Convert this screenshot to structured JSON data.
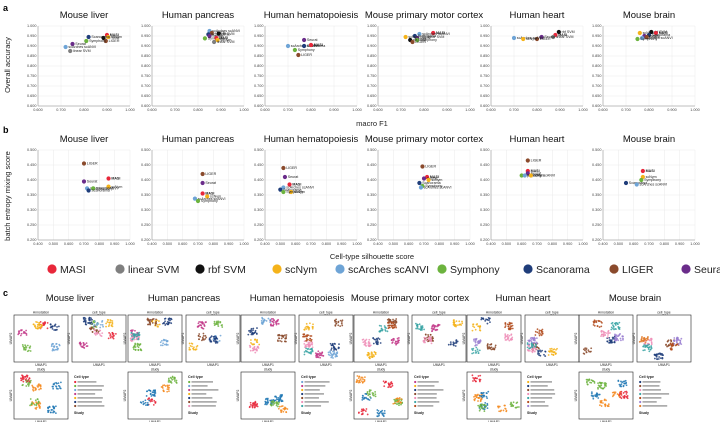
{
  "panel_labels": {
    "a": "a",
    "b": "b",
    "c": "c"
  },
  "dataset_titles": [
    "Mouse liver",
    "Human pancreas",
    "Human hematopoiesis",
    "Mouse primary motor cortex",
    "Human heart",
    "Mouse brain"
  ],
  "colors": {
    "MASI": "#e8273a",
    "linear SVM": "#7f7f7f",
    "rbf SVM": "#111111",
    "scNym": "#f5b31a",
    "scArches scANVI": "#6ea4d6",
    "Symphony": "#6cb33e",
    "Scanorama": "#1f3d7a",
    "LIGER": "#8a4a2c",
    "Seurat": "#6a2c8a"
  },
  "legend": {
    "items": [
      {
        "name": "MASI",
        "color": "#e8273a"
      },
      {
        "name": "linear SVM",
        "color": "#7f7f7f"
      },
      {
        "name": "rbf SVM",
        "color": "#111111"
      },
      {
        "name": "scNym",
        "color": "#f5b31a"
      },
      {
        "name": "scArches scANVI",
        "color": "#6ea4d6"
      },
      {
        "name": "Symphony",
        "color": "#6cb33e"
      },
      {
        "name": "Scanorama",
        "color": "#1f3d7a"
      },
      {
        "name": "LIGER",
        "color": "#8a4a2c"
      },
      {
        "name": "Seurat",
        "color": "#6a2c8a"
      }
    ]
  },
  "chart_data": [
    {
      "id": "a",
      "type": "scatter",
      "ylabel": "Overall accuracy",
      "xlabel": "macro F1",
      "xlim": [
        0.6,
        1.0
      ],
      "ylim": [
        0.6,
        1.0
      ],
      "xticks": [
        "0.600",
        "0.700",
        "0.800",
        "0.900",
        "1.000"
      ],
      "yticks": [
        "0.600",
        "0.650",
        "0.700",
        "0.750",
        "0.800",
        "0.850",
        "0.900",
        "0.950",
        "1.000"
      ],
      "panels": [
        {
          "title": "Mouse liver",
          "points": [
            {
              "method": "MASI",
              "x": 0.9,
              "y": 0.955,
              "label": "MASI"
            },
            {
              "method": "rbf SVM",
              "x": 0.885,
              "y": 0.94,
              "label": "rbf SVM"
            },
            {
              "method": "scNym",
              "x": 0.905,
              "y": 0.945,
              "label": "scNym"
            },
            {
              "method": "LIGER",
              "x": 0.895,
              "y": 0.925,
              "label": "LIGER"
            },
            {
              "method": "Scanorama",
              "x": 0.82,
              "y": 0.945,
              "label": "Scanorama"
            },
            {
              "method": "Symphony",
              "x": 0.81,
              "y": 0.925,
              "label": "Symphony"
            },
            {
              "method": "Seurat",
              "x": 0.75,
              "y": 0.91,
              "label": "Seurat"
            },
            {
              "method": "scArches scANVI",
              "x": 0.72,
              "y": 0.895,
              "label": "scArches scANVI"
            },
            {
              "method": "linear SVM",
              "x": 0.74,
              "y": 0.875,
              "label": "linear SVM"
            }
          ]
        },
        {
          "title": "Human pancreas",
          "points": [
            {
              "method": "scArches scANVI",
              "x": 0.85,
              "y": 0.975,
              "label": "scArches scANVI"
            },
            {
              "method": "LIGER",
              "x": 0.86,
              "y": 0.965,
              "label": "LIGER"
            },
            {
              "method": "Scanorama",
              "x": 0.845,
              "y": 0.958,
              "label": "Scanorama"
            },
            {
              "method": "rbf SVM",
              "x": 0.89,
              "y": 0.962,
              "label": "rbf SVM"
            },
            {
              "method": "Seurat",
              "x": 0.85,
              "y": 0.95,
              "label": "Seurat"
            },
            {
              "method": "Symphony",
              "x": 0.83,
              "y": 0.938,
              "label": "Symphony"
            },
            {
              "method": "MASI",
              "x": 0.88,
              "y": 0.94,
              "label": "MASI"
            },
            {
              "method": "scNym",
              "x": 0.885,
              "y": 0.93,
              "label": "scNym"
            },
            {
              "method": "linear SVM",
              "x": 0.87,
              "y": 0.92,
              "label": "linear SVM"
            }
          ]
        },
        {
          "title": "Human hematopoiesis",
          "points": [
            {
              "method": "Seurat",
              "x": 0.77,
              "y": 0.93,
              "label": "Seurat"
            },
            {
              "method": "scArches scANVI",
              "x": 0.7,
              "y": 0.9,
              "label": "scArches scANVI"
            },
            {
              "method": "Scanorama",
              "x": 0.77,
              "y": 0.9,
              "label": "Scanorama"
            },
            {
              "method": "MASI",
              "x": 0.8,
              "y": 0.905,
              "label": "MASI"
            },
            {
              "method": "Symphony",
              "x": 0.73,
              "y": 0.88,
              "label": "Symphony"
            },
            {
              "method": "LIGER",
              "x": 0.745,
              "y": 0.855,
              "label": "LIGER"
            }
          ]
        },
        {
          "title": "Mouse primary motor cortex",
          "points": [
            {
              "method": "MASI",
              "x": 0.84,
              "y": 0.965,
              "label": "MASI"
            },
            {
              "method": "scArches scANVI",
              "x": 0.78,
              "y": 0.96,
              "label": "scArches scANVI"
            },
            {
              "method": "Scanorama",
              "x": 0.76,
              "y": 0.95,
              "label": "Scanorama"
            },
            {
              "method": "Seurat",
              "x": 0.77,
              "y": 0.94,
              "label": "Seurat"
            },
            {
              "method": "linear SVM",
              "x": 0.8,
              "y": 0.945,
              "label": "linear SVM"
            },
            {
              "method": "Symphony",
              "x": 0.77,
              "y": 0.93,
              "label": "Symphony"
            },
            {
              "method": "scNym",
              "x": 0.72,
              "y": 0.945,
              "label": "scNym"
            },
            {
              "method": "rbf SVM",
              "x": 0.74,
              "y": 0.93,
              "label": "rbf SVM"
            },
            {
              "method": "LIGER",
              "x": 0.75,
              "y": 0.92,
              "label": "LIGER"
            }
          ]
        },
        {
          "title": "Human heart",
          "points": [
            {
              "method": "rbf SVM",
              "x": 0.895,
              "y": 0.97,
              "label": "rbf SVM"
            },
            {
              "method": "MASI",
              "x": 0.88,
              "y": 0.955,
              "label": "MASI"
            },
            {
              "method": "linear SVM",
              "x": 0.87,
              "y": 0.945,
              "label": "linear SVM"
            },
            {
              "method": "Seurat",
              "x": 0.82,
              "y": 0.945,
              "label": "Seurat"
            },
            {
              "method": "LIGER",
              "x": 0.8,
              "y": 0.935,
              "label": "LIGER"
            },
            {
              "method": "scArches scANVI",
              "x": 0.7,
              "y": 0.94,
              "label": "scArches scANVI"
            },
            {
              "method": "scNym",
              "x": 0.74,
              "y": 0.935,
              "label": "scNym"
            }
          ]
        },
        {
          "title": "Mouse brain",
          "points": [
            {
              "method": "scNym",
              "x": 0.76,
              "y": 0.965,
              "label": "scNym"
            },
            {
              "method": "rbf SVM",
              "x": 0.81,
              "y": 0.97,
              "label": "rbf SVM"
            },
            {
              "method": "MASI",
              "x": 0.83,
              "y": 0.965,
              "label": "MASI"
            },
            {
              "method": "Scanorama",
              "x": 0.8,
              "y": 0.955,
              "label": "Scanorama"
            },
            {
              "method": "Seurat",
              "x": 0.78,
              "y": 0.95,
              "label": "Seurat"
            },
            {
              "method": "scArches scANVI",
              "x": 0.77,
              "y": 0.94,
              "label": "scArches scANVI"
            },
            {
              "method": "LIGER",
              "x": 0.79,
              "y": 0.945,
              "label": "LIGER"
            },
            {
              "method": "Symphony",
              "x": 0.75,
              "y": 0.935,
              "label": "Symphony"
            }
          ]
        }
      ]
    },
    {
      "id": "b",
      "type": "scatter",
      "ylabel": "batch entropy mixing score",
      "xlabel": "Cell-type silhouette score",
      "xlim": [
        0.4,
        1.0
      ],
      "ylim": [
        0.2,
        0.5
      ],
      "xticks": [
        "0.400",
        "0.500",
        "0.600",
        "0.700",
        "0.800",
        "0.900",
        "1.000"
      ],
      "yticks": [
        "0.200",
        "0.250",
        "0.300",
        "0.350",
        "0.400",
        "0.450",
        "0.500"
      ],
      "panels": [
        {
          "title": "Mouse liver",
          "points": [
            {
              "method": "LIGER",
              "x": 0.7,
              "y": 0.455,
              "label": "LIGER"
            },
            {
              "method": "MASI",
              "x": 0.86,
              "y": 0.405,
              "label": "MASI"
            },
            {
              "method": "Seurat",
              "x": 0.7,
              "y": 0.395,
              "label": "Seurat"
            },
            {
              "method": "scNym",
              "x": 0.86,
              "y": 0.378,
              "label": "scNym"
            },
            {
              "method": "scArches scANVI",
              "x": 0.72,
              "y": 0.372,
              "label": "scArches scANVI"
            },
            {
              "method": "Symphony",
              "x": 0.76,
              "y": 0.372,
              "label": "Symphony"
            },
            {
              "method": "Scanorama",
              "x": 0.73,
              "y": 0.365,
              "label": "Scanorama"
            }
          ]
        },
        {
          "title": "Human pancreas",
          "points": [
            {
              "method": "LIGER",
              "x": 0.73,
              "y": 0.42,
              "label": "LIGER"
            },
            {
              "method": "Seurat",
              "x": 0.73,
              "y": 0.39,
              "label": "Seurat"
            },
            {
              "method": "MASI",
              "x": 0.73,
              "y": 0.355,
              "label": "MASI"
            },
            {
              "method": "scNym",
              "x": 0.76,
              "y": 0.345,
              "label": "scNym"
            },
            {
              "method": "scArches scANVI",
              "x": 0.68,
              "y": 0.338,
              "label": "scArches scANVI"
            },
            {
              "method": "Symphony",
              "x": 0.7,
              "y": 0.33,
              "label": "Symphony"
            }
          ]
        },
        {
          "title": "Human hematopoiesis",
          "points": [
            {
              "method": "LIGER",
              "x": 0.52,
              "y": 0.44,
              "label": "LIGER"
            },
            {
              "method": "Seurat",
              "x": 0.53,
              "y": 0.41,
              "label": "Seurat"
            },
            {
              "method": "MASI",
              "x": 0.56,
              "y": 0.385,
              "label": "MASI"
            },
            {
              "method": "scArches scANVI",
              "x": 0.52,
              "y": 0.375,
              "label": "scArches scANVI"
            },
            {
              "method": "Scanorama",
              "x": 0.5,
              "y": 0.368,
              "label": "Scanorama"
            },
            {
              "method": "scNym",
              "x": 0.57,
              "y": 0.36,
              "label": "scNym"
            },
            {
              "method": "Symphony",
              "x": 0.52,
              "y": 0.36,
              "label": "Symphony"
            }
          ]
        },
        {
          "title": "Mouse primary motor cortex",
          "points": [
            {
              "method": "LIGER",
              "x": 0.69,
              "y": 0.445,
              "label": "LIGER"
            },
            {
              "method": "MASI",
              "x": 0.72,
              "y": 0.41,
              "label": "MASI"
            },
            {
              "method": "Seurat",
              "x": 0.7,
              "y": 0.405,
              "label": "Seurat"
            },
            {
              "method": "scNym",
              "x": 0.73,
              "y": 0.4,
              "label": "scNym"
            },
            {
              "method": "Scanorama",
              "x": 0.67,
              "y": 0.39,
              "label": "Scanorama"
            },
            {
              "method": "Symphony",
              "x": 0.69,
              "y": 0.38,
              "label": "Symphony"
            },
            {
              "method": "scArches scANVI",
              "x": 0.68,
              "y": 0.375,
              "label": "scArches scANVI"
            }
          ]
        },
        {
          "title": "Human heart",
          "points": [
            {
              "method": "LIGER",
              "x": 0.64,
              "y": 0.465,
              "label": "LIGER"
            },
            {
              "method": "MASI",
              "x": 0.64,
              "y": 0.43,
              "label": "MASI"
            },
            {
              "method": "Seurat",
              "x": 0.64,
              "y": 0.422,
              "label": "Seurat"
            },
            {
              "method": "Symphony",
              "x": 0.6,
              "y": 0.415,
              "label": "Symphony"
            },
            {
              "method": "scArches scANVI",
              "x": 0.62,
              "y": 0.415,
              "label": "scArches scANVI"
            },
            {
              "method": "scNym",
              "x": 0.66,
              "y": 0.415,
              "label": "scNym"
            }
          ]
        },
        {
          "title": "Mouse brain",
          "points": [
            {
              "method": "MASI",
              "x": 0.66,
              "y": 0.43,
              "label": "MASI"
            },
            {
              "method": "scNym",
              "x": 0.66,
              "y": 0.41,
              "label": "scNym"
            },
            {
              "method": "Symphony",
              "x": 0.65,
              "y": 0.4,
              "label": "Symphony"
            },
            {
              "method": "Scanorama",
              "x": 0.55,
              "y": 0.39,
              "label": "Scanorama"
            },
            {
              "method": "scArches scANVI",
              "x": 0.62,
              "y": 0.385,
              "label": "scArches scANVI"
            }
          ]
        }
      ]
    }
  ],
  "umap": {
    "annotation_label": "Annotation",
    "celltype_label": "cell_type",
    "study_label": "study",
    "axis_x": "UMAP1",
    "axis_y": "UMAP2",
    "legend_header_celltype": "Cell type",
    "legend_header_study": "Study"
  }
}
